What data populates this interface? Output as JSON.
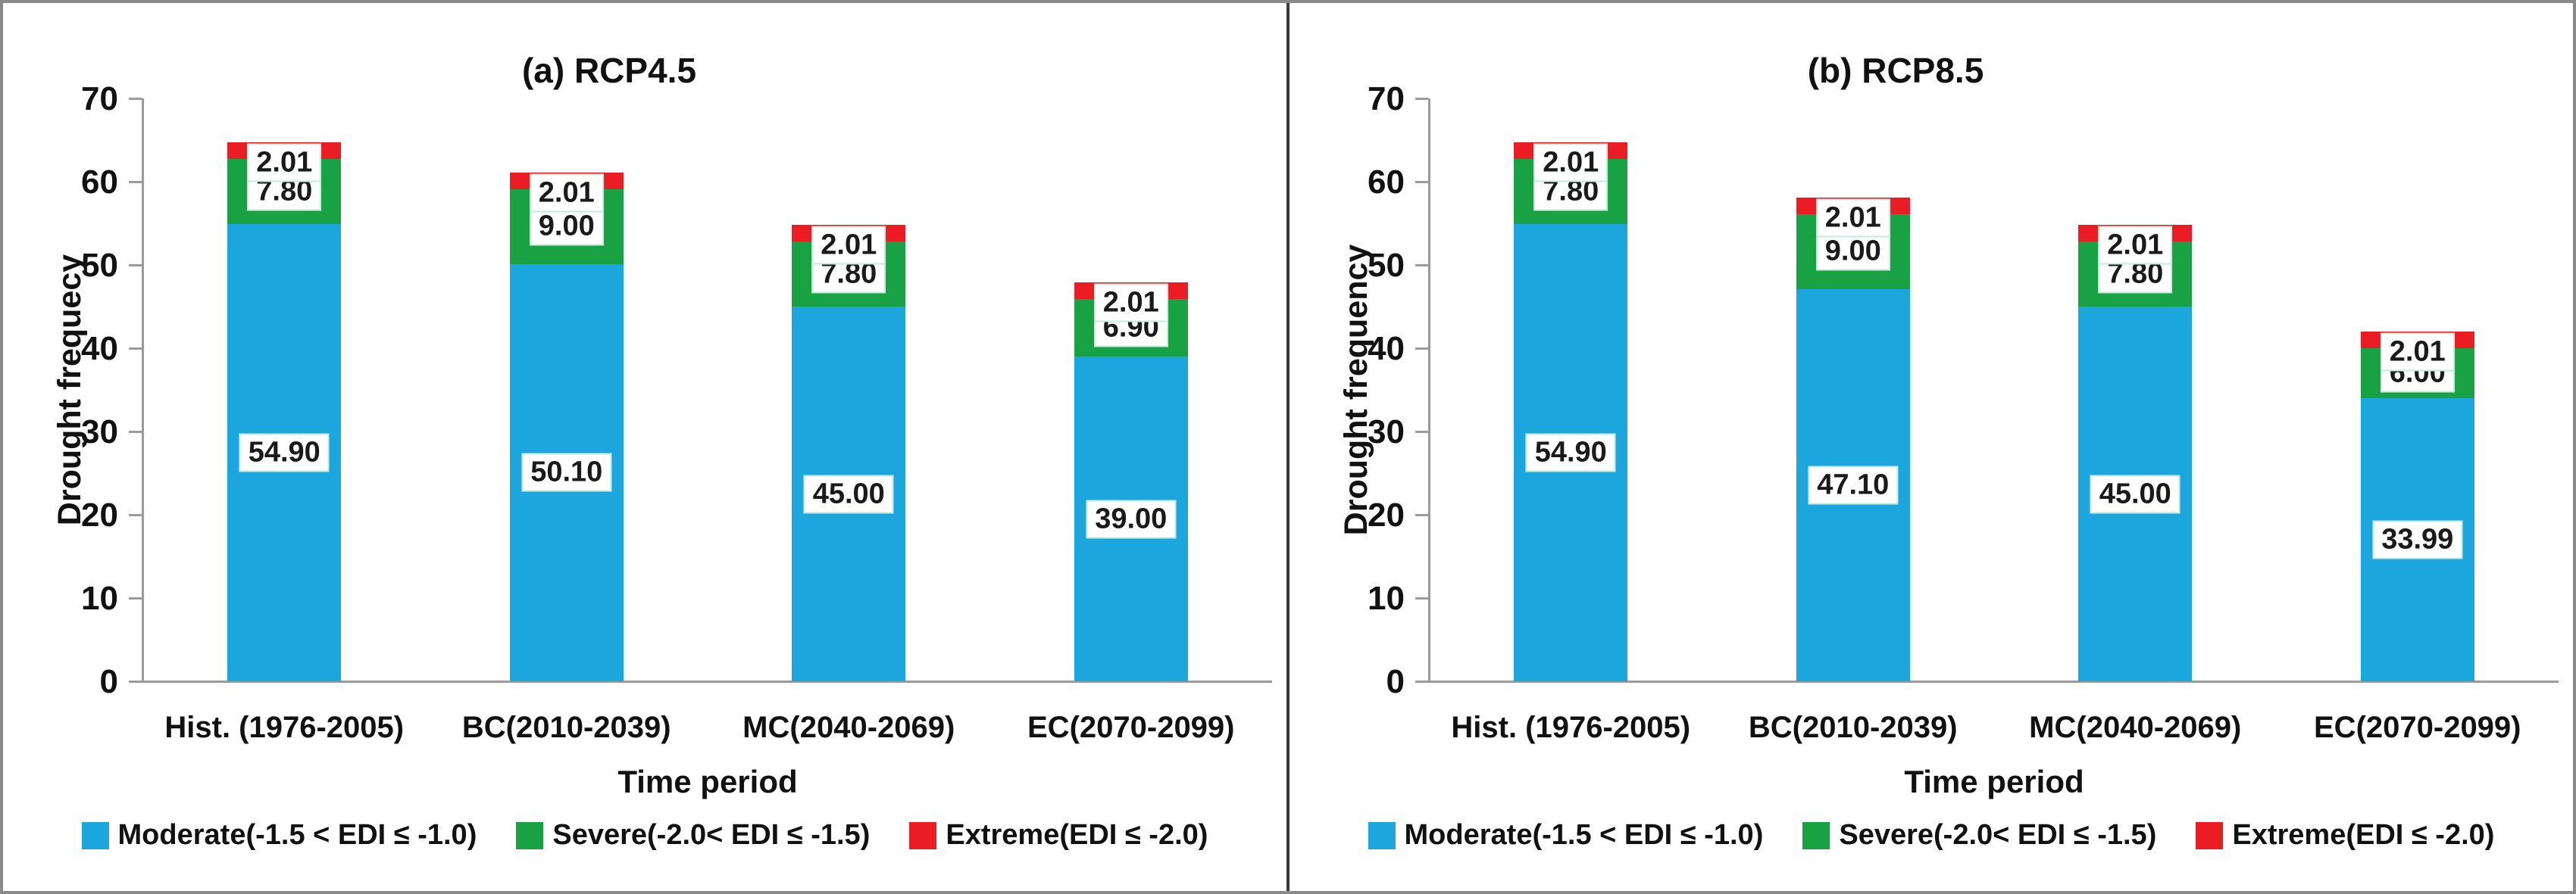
{
  "figure": {
    "border_color": "#8a8a8a",
    "divider_color": "#3a3a3a",
    "axis_color": "#9b9b9b",
    "label_box_border_color": "#c9e9dc"
  },
  "legend": [
    {
      "label": "Moderate(-1.5 < EDI ≤ -1.0)",
      "color": "#1BA6DE"
    },
    {
      "label": "Severe(-2.0< EDI ≤ -1.5)",
      "color": "#18A244"
    },
    {
      "label": "Extreme(EDI ≤ -2.0)",
      "color": "#EC1C24"
    }
  ],
  "chart_data": [
    {
      "type": "bar",
      "stacked": true,
      "title": "(a) RCP4.5",
      "ylabel": "Drought frequecy",
      "xlabel": "Time period",
      "ylim": [
        0,
        70
      ],
      "yticks": [
        0,
        10,
        20,
        30,
        40,
        50,
        60,
        70
      ],
      "grid": false,
      "legend_position": "bottom",
      "categories": [
        "Hist. (1976-2005)",
        "BC(2010-2039)",
        "MC(2040-2069)",
        "EC(2070-2099)"
      ],
      "series": [
        {
          "name": "Moderate(-1.5 < EDI ≤ -1.0)",
          "color": "#1BA6DE",
          "values": [
            54.9,
            50.1,
            45.0,
            39.0
          ]
        },
        {
          "name": "Severe(-2.0< EDI ≤ -1.5)",
          "color": "#18A244",
          "values": [
            7.8,
            9.0,
            7.8,
            6.9
          ]
        },
        {
          "name": "Extreme(EDI ≤ -2.0)",
          "color": "#EC1C24",
          "values": [
            2.01,
            2.01,
            2.01,
            2.01
          ]
        }
      ]
    },
    {
      "type": "bar",
      "stacked": true,
      "title": "(b) RCP8.5",
      "ylabel": "Drought frequency",
      "xlabel": "Time period",
      "ylim": [
        0,
        70
      ],
      "yticks": [
        0,
        10,
        20,
        30,
        40,
        50,
        60,
        70
      ],
      "grid": false,
      "legend_position": "bottom",
      "categories": [
        "Hist. (1976-2005)",
        "BC(2010-2039)",
        "MC(2040-2069)",
        "EC(2070-2099)"
      ],
      "series": [
        {
          "name": "Moderate(-1.5 < EDI ≤ -1.0)",
          "color": "#1BA6DE",
          "values": [
            54.9,
            47.1,
            45.0,
            33.99
          ]
        },
        {
          "name": "Severe(-2.0< EDI ≤ -1.5)",
          "color": "#18A244",
          "values": [
            7.8,
            9.0,
            7.8,
            6.0
          ]
        },
        {
          "name": "Extreme(EDI ≤ -2.0)",
          "color": "#EC1C24",
          "values": [
            2.01,
            2.01,
            2.01,
            2.01
          ]
        }
      ]
    }
  ]
}
